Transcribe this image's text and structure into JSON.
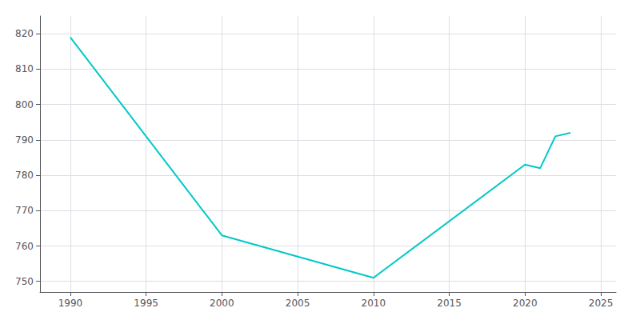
{
  "chart_data": {
    "type": "line",
    "x": [
      1990,
      2000,
      2010,
      2020,
      2021,
      2022,
      2023
    ],
    "values": [
      819,
      763,
      751,
      783,
      782,
      791,
      792
    ],
    "color": "#00c8c8",
    "xlim": [
      1988,
      2026
    ],
    "ylim": [
      747,
      825
    ],
    "xticks": [
      1990,
      1995,
      2000,
      2005,
      2010,
      2015,
      2020,
      2025
    ],
    "yticks": [
      750,
      760,
      770,
      780,
      790,
      800,
      810,
      820
    ],
    "grid": true
  }
}
